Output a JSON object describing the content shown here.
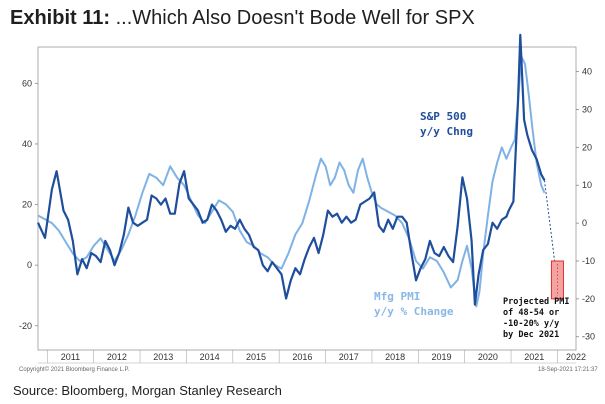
{
  "header": {
    "exhibit": "Exhibit 11:",
    "title": "...Which Also Doesn't Bode Well for SPX"
  },
  "footer": {
    "source": "Source: Bloomberg, Morgan Stanley Research",
    "copyright": "Copyright© 2021 Bloomberg Finance L.P.",
    "timestamp": "18-Sep-2021 17:21:37"
  },
  "colors": {
    "spx": "#1f4e9c",
    "pmi": "#7fb2e5",
    "spx_label": "#1f4e9c",
    "pmi_label": "#8ab8e6",
    "projection_fill": "#f4a3a3",
    "projection_stroke": "#e03030"
  },
  "chart_data": {
    "type": "line",
    "xlim": [
      2010.8,
      2022.4
    ],
    "x_ticks": [
      {
        "label": "2011",
        "value": 2011.5
      },
      {
        "label": "2012",
        "value": 2012.5
      },
      {
        "label": "2013",
        "value": 2013.5
      },
      {
        "label": "2014",
        "value": 2014.5
      },
      {
        "label": "2015",
        "value": 2015.5
      },
      {
        "label": "2016",
        "value": 2016.5
      },
      {
        "label": "2017",
        "value": 2017.5
      },
      {
        "label": "2018",
        "value": 2018.5
      },
      {
        "label": "2019",
        "value": 2019.5
      },
      {
        "label": "2020",
        "value": 2020.5
      },
      {
        "label": "2021",
        "value": 2021.5
      },
      {
        "label": "2022",
        "value": 2022.4
      }
    ],
    "y_left": {
      "range": [
        -28,
        72
      ],
      "ticks": [
        60,
        40,
        20,
        0,
        -20
      ]
    },
    "y_right": {
      "range": [
        -33.5,
        46.5
      ],
      "ticks": [
        40,
        30,
        20,
        10,
        0,
        -10,
        -20,
        -30
      ]
    },
    "series": [
      {
        "name": "S&P 500 y/y Chng",
        "axis": "left",
        "points": [
          [
            2010.8,
            14
          ],
          [
            2010.95,
            9
          ],
          [
            2011.1,
            25
          ],
          [
            2011.2,
            31
          ],
          [
            2011.35,
            18
          ],
          [
            2011.45,
            15
          ],
          [
            2011.55,
            8
          ],
          [
            2011.65,
            -3
          ],
          [
            2011.75,
            2
          ],
          [
            2011.85,
            -1
          ],
          [
            2011.95,
            4
          ],
          [
            2012.05,
            3
          ],
          [
            2012.15,
            1
          ],
          [
            2012.25,
            8
          ],
          [
            2012.35,
            5
          ],
          [
            2012.45,
            0
          ],
          [
            2012.55,
            4
          ],
          [
            2012.65,
            10
          ],
          [
            2012.75,
            19
          ],
          [
            2012.85,
            14
          ],
          [
            2012.95,
            13
          ],
          [
            2013.05,
            14
          ],
          [
            2013.15,
            15
          ],
          [
            2013.25,
            23
          ],
          [
            2013.35,
            22
          ],
          [
            2013.45,
            20
          ],
          [
            2013.55,
            22
          ],
          [
            2013.65,
            17
          ],
          [
            2013.75,
            17
          ],
          [
            2013.85,
            27
          ],
          [
            2013.95,
            31
          ],
          [
            2014.05,
            22
          ],
          [
            2014.15,
            20
          ],
          [
            2014.25,
            18
          ],
          [
            2014.35,
            14
          ],
          [
            2014.45,
            15
          ],
          [
            2014.55,
            20
          ],
          [
            2014.65,
            18
          ],
          [
            2014.75,
            15
          ],
          [
            2014.85,
            11
          ],
          [
            2014.95,
            13
          ],
          [
            2015.05,
            12
          ],
          [
            2015.15,
            15
          ],
          [
            2015.25,
            12
          ],
          [
            2015.35,
            10
          ],
          [
            2015.45,
            6
          ],
          [
            2015.55,
            5
          ],
          [
            2015.65,
            0
          ],
          [
            2015.75,
            -2
          ],
          [
            2015.85,
            1
          ],
          [
            2015.95,
            -1
          ],
          [
            2016.05,
            -3
          ],
          [
            2016.15,
            -11
          ],
          [
            2016.25,
            -5
          ],
          [
            2016.35,
            -1
          ],
          [
            2016.45,
            -3
          ],
          [
            2016.55,
            2
          ],
          [
            2016.65,
            6
          ],
          [
            2016.75,
            9
          ],
          [
            2016.85,
            4
          ],
          [
            2016.95,
            10
          ],
          [
            2017.05,
            18
          ],
          [
            2017.15,
            16
          ],
          [
            2017.25,
            17
          ],
          [
            2017.35,
            14
          ],
          [
            2017.45,
            16
          ],
          [
            2017.55,
            14
          ],
          [
            2017.65,
            15
          ],
          [
            2017.75,
            20
          ],
          [
            2017.85,
            21
          ],
          [
            2017.95,
            22
          ],
          [
            2018.05,
            24
          ],
          [
            2018.15,
            13
          ],
          [
            2018.25,
            11
          ],
          [
            2018.35,
            15
          ],
          [
            2018.45,
            12
          ],
          [
            2018.55,
            16
          ],
          [
            2018.65,
            16
          ],
          [
            2018.75,
            14
          ],
          [
            2018.85,
            4
          ],
          [
            2018.95,
            -5
          ],
          [
            2019.05,
            -1
          ],
          [
            2019.15,
            2
          ],
          [
            2019.25,
            8
          ],
          [
            2019.35,
            4
          ],
          [
            2019.45,
            3
          ],
          [
            2019.55,
            6
          ],
          [
            2019.65,
            3
          ],
          [
            2019.75,
            1
          ],
          [
            2019.85,
            13
          ],
          [
            2019.95,
            29
          ],
          [
            2020.05,
            22
          ],
          [
            2020.15,
            8
          ],
          [
            2020.22,
            -13
          ],
          [
            2020.3,
            -3
          ],
          [
            2020.4,
            5
          ],
          [
            2020.5,
            7
          ],
          [
            2020.6,
            14
          ],
          [
            2020.7,
            12
          ],
          [
            2020.8,
            15
          ],
          [
            2020.9,
            16
          ],
          [
            2020.95,
            18
          ],
          [
            2021.05,
            21
          ],
          [
            2021.15,
            54
          ],
          [
            2021.2,
            76
          ],
          [
            2021.28,
            48
          ],
          [
            2021.35,
            43
          ],
          [
            2021.45,
            38
          ],
          [
            2021.55,
            35
          ],
          [
            2021.65,
            30
          ],
          [
            2021.72,
            28
          ]
        ]
      },
      {
        "name": "Mfg PMI y/y % Change",
        "axis": "right",
        "points": [
          [
            2010.8,
            2
          ],
          [
            2010.95,
            1
          ],
          [
            2011.1,
            0
          ],
          [
            2011.25,
            -2
          ],
          [
            2011.4,
            -5
          ],
          [
            2011.55,
            -8
          ],
          [
            2011.7,
            -10
          ],
          [
            2011.85,
            -9
          ],
          [
            2012.0,
            -6
          ],
          [
            2012.15,
            -4
          ],
          [
            2012.3,
            -7
          ],
          [
            2012.45,
            -10
          ],
          [
            2012.6,
            -7
          ],
          [
            2012.75,
            -3
          ],
          [
            2012.9,
            2
          ],
          [
            2013.05,
            8
          ],
          [
            2013.2,
            13
          ],
          [
            2013.35,
            12
          ],
          [
            2013.5,
            10
          ],
          [
            2013.65,
            15
          ],
          [
            2013.8,
            12
          ],
          [
            2013.95,
            10
          ],
          [
            2014.1,
            6
          ],
          [
            2014.25,
            2
          ],
          [
            2014.4,
            0
          ],
          [
            2014.55,
            3
          ],
          [
            2014.7,
            6
          ],
          [
            2014.85,
            5
          ],
          [
            2015.0,
            3
          ],
          [
            2015.15,
            -2
          ],
          [
            2015.3,
            -5
          ],
          [
            2015.45,
            -6
          ],
          [
            2015.6,
            -8
          ],
          [
            2015.75,
            -9
          ],
          [
            2015.9,
            -11
          ],
          [
            2016.05,
            -12
          ],
          [
            2016.2,
            -8
          ],
          [
            2016.35,
            -3
          ],
          [
            2016.5,
            0
          ],
          [
            2016.65,
            6
          ],
          [
            2016.8,
            13
          ],
          [
            2016.9,
            17
          ],
          [
            2017.0,
            15
          ],
          [
            2017.1,
            10
          ],
          [
            2017.2,
            12
          ],
          [
            2017.3,
            16
          ],
          [
            2017.4,
            14
          ],
          [
            2017.5,
            10
          ],
          [
            2017.6,
            8
          ],
          [
            2017.7,
            14
          ],
          [
            2017.8,
            17
          ],
          [
            2017.9,
            12
          ],
          [
            2018.0,
            8
          ],
          [
            2018.1,
            5
          ],
          [
            2018.2,
            4
          ],
          [
            2018.35,
            3
          ],
          [
            2018.5,
            2
          ],
          [
            2018.65,
            0
          ],
          [
            2018.8,
            -4
          ],
          [
            2018.95,
            -10
          ],
          [
            2019.1,
            -12
          ],
          [
            2019.25,
            -9
          ],
          [
            2019.4,
            -10
          ],
          [
            2019.55,
            -13
          ],
          [
            2019.7,
            -17
          ],
          [
            2019.85,
            -15
          ],
          [
            2019.95,
            -10
          ],
          [
            2020.05,
            -6
          ],
          [
            2020.15,
            -12
          ],
          [
            2020.25,
            -22
          ],
          [
            2020.32,
            -18
          ],
          [
            2020.4,
            -8
          ],
          [
            2020.5,
            2
          ],
          [
            2020.6,
            11
          ],
          [
            2020.7,
            16
          ],
          [
            2020.8,
            20
          ],
          [
            2020.9,
            17
          ],
          [
            2021.0,
            20
          ],
          [
            2021.08,
            22
          ],
          [
            2021.15,
            32
          ],
          [
            2021.22,
            44
          ],
          [
            2021.3,
            42
          ],
          [
            2021.38,
            34
          ],
          [
            2021.46,
            25
          ],
          [
            2021.55,
            16
          ],
          [
            2021.65,
            10
          ],
          [
            2021.72,
            8
          ]
        ]
      }
    ],
    "projection": {
      "connector": [
        [
          2021.72,
          28
        ],
        [
          2021.95,
          0
        ]
      ],
      "bar": {
        "x": 2022.0,
        "y_right": [
          -20,
          -10
        ]
      }
    },
    "annotations": {
      "spx_label": [
        "S&P 500",
        "y/y Chng"
      ],
      "pmi_label": [
        "Mfg PMI",
        "y/y % Change"
      ],
      "projection_label": [
        "Projected PMI",
        "of 48-54 or",
        "-10-20% y/y",
        "by Dec 2021"
      ]
    }
  }
}
